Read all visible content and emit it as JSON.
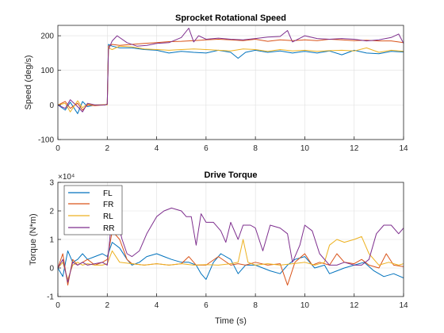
{
  "chart_data": [
    {
      "type": "line",
      "title": "Sprocket Rotational Speed",
      "xlabel": "",
      "ylabel": "Speed (deg/s)",
      "xlim": [
        0,
        14
      ],
      "ylim": [
        -100,
        230
      ],
      "xticks": [
        "0",
        "2",
        "4",
        "6",
        "8",
        "10",
        "12",
        "14"
      ],
      "yticks": [
        "-100",
        "0",
        "100",
        "200"
      ],
      "grid": true,
      "legend": "none",
      "colors": [
        "#0072BD",
        "#D95319",
        "#EDB120",
        "#7E2F8E"
      ],
      "series": [
        {
          "x": [
            0,
            0.3,
            0.5,
            0.8,
            1.0,
            1.2,
            1.5,
            1.9,
            2.0,
            2.05,
            2.2,
            2.5,
            3.0,
            3.5,
            4.0,
            4.5,
            5.0,
            5.5,
            6.0,
            6.5,
            7.0,
            7.3,
            7.6,
            8.0,
            8.5,
            9.0,
            9.5,
            10.0,
            10.5,
            11.0,
            11.5,
            12.0,
            12.5,
            13.0,
            13.5,
            14.0
          ],
          "values": [
            0,
            -15,
            8,
            -25,
            10,
            -5,
            0,
            0,
            2,
            175,
            170,
            165,
            165,
            160,
            158,
            150,
            155,
            152,
            150,
            158,
            152,
            135,
            152,
            158,
            152,
            156,
            150,
            155,
            150,
            156,
            145,
            158,
            150,
            148,
            155,
            153
          ]
        },
        {
          "x": [
            0,
            0.3,
            0.5,
            0.8,
            1.0,
            1.2,
            1.5,
            1.9,
            2.0,
            2.05,
            2.2,
            2.5,
            3.0,
            3.5,
            4.0,
            4.5,
            5.0,
            5.5,
            6.0,
            6.5,
            7.0,
            7.5,
            8.0,
            8.5,
            9.0,
            9.5,
            10.0,
            10.5,
            11.0,
            11.5,
            12.0,
            12.5,
            13.0,
            13.5,
            14.0
          ],
          "values": [
            0,
            10,
            -10,
            5,
            -15,
            0,
            -2,
            0,
            3,
            170,
            175,
            172,
            175,
            178,
            180,
            183,
            184,
            186,
            188,
            190,
            188,
            186,
            190,
            184,
            188,
            186,
            188,
            186,
            190,
            188,
            186,
            187,
            185,
            185,
            180
          ]
        },
        {
          "x": [
            0,
            0.3,
            0.5,
            0.8,
            1.0,
            1.2,
            1.5,
            1.9,
            2.0,
            2.05,
            2.2,
            2.5,
            3.0,
            3.5,
            4.0,
            4.5,
            5.0,
            5.5,
            6.0,
            6.5,
            7.0,
            7.5,
            8.0,
            8.5,
            9.0,
            9.5,
            10.0,
            10.5,
            11.0,
            11.5,
            12.0,
            12.5,
            13.0,
            13.5,
            14.0
          ],
          "values": [
            0,
            5,
            -20,
            12,
            -8,
            3,
            0,
            1,
            0,
            165,
            160,
            170,
            168,
            162,
            160,
            158,
            160,
            162,
            160,
            158,
            156,
            162,
            160,
            155,
            160,
            156,
            158,
            155,
            157,
            158,
            156,
            165,
            152,
            158,
            155
          ]
        },
        {
          "x": [
            0,
            0.3,
            0.5,
            0.8,
            1.0,
            1.2,
            1.5,
            1.9,
            2.0,
            2.05,
            2.2,
            2.4,
            2.8,
            3.2,
            3.6,
            4.0,
            4.5,
            5.0,
            5.3,
            5.5,
            5.7,
            6.0,
            6.5,
            7.0,
            7.5,
            8.0,
            8.5,
            9.0,
            9.3,
            9.5,
            10.0,
            10.5,
            11.0,
            11.5,
            12.0,
            12.5,
            13.0,
            13.5,
            13.8,
            14.0
          ],
          "values": [
            0,
            -10,
            15,
            -5,
            -20,
            5,
            0,
            0,
            2,
            160,
            185,
            200,
            180,
            170,
            172,
            178,
            180,
            195,
            222,
            182,
            200,
            190,
            193,
            190,
            188,
            192,
            196,
            198,
            215,
            182,
            200,
            192,
            190,
            192,
            190,
            185,
            188,
            195,
            205,
            178
          ]
        }
      ]
    },
    {
      "type": "line",
      "title": "Drive Torque",
      "xlabel": "Time (s)",
      "ylabel": "Torque (N*m)",
      "exponent_label": "×10⁴",
      "xlim": [
        0,
        14
      ],
      "ylim": [
        -1,
        3
      ],
      "xticks": [
        "0",
        "2",
        "4",
        "6",
        "8",
        "10",
        "12",
        "14"
      ],
      "yticks": [
        "-1",
        "0",
        "1",
        "2",
        "3"
      ],
      "grid": true,
      "legend": "top-left",
      "legend_entries": [
        "FL",
        "FR",
        "RL",
        "RR"
      ],
      "colors": [
        "#0072BD",
        "#D95319",
        "#EDB120",
        "#7E2F8E"
      ],
      "series": [
        {
          "name": "FL",
          "x": [
            0,
            0.2,
            0.4,
            0.6,
            0.8,
            1.0,
            1.2,
            1.5,
            1.8,
            2.0,
            2.2,
            2.5,
            2.8,
            3.0,
            3.3,
            3.6,
            4.0,
            4.3,
            4.6,
            5.0,
            5.3,
            5.6,
            5.8,
            6.0,
            6.3,
            6.6,
            7.0,
            7.3,
            7.6,
            8.0,
            8.3,
            8.6,
            9.0,
            9.3,
            9.6,
            10.0,
            10.4,
            10.8,
            11.0,
            11.3,
            11.6,
            12.0,
            12.4,
            12.8,
            13.2,
            13.6,
            14.0
          ],
          "values": [
            0,
            -0.3,
            0.6,
            0.2,
            0.3,
            0.5,
            0.3,
            0.4,
            0.5,
            0.4,
            0.9,
            0.7,
            0.3,
            0.1,
            0.2,
            0.4,
            0.5,
            0.4,
            0.3,
            0.2,
            0.2,
            0.1,
            -0.2,
            -0.4,
            0.2,
            0.5,
            0.3,
            -0.2,
            0.1,
            0.1,
            0.0,
            -0.1,
            -0.2,
            0.1,
            0.3,
            0.4,
            0.0,
            0.1,
            -0.2,
            -0.1,
            0.0,
            0.1,
            0.2,
            -0.1,
            -0.3,
            -0.2,
            -0.35
          ]
        },
        {
          "name": "FR",
          "x": [
            0,
            0.2,
            0.4,
            0.6,
            0.8,
            1.0,
            1.2,
            1.5,
            1.8,
            2.0,
            2.2,
            2.5,
            2.8,
            3.0,
            3.5,
            4.0,
            4.5,
            5.0,
            5.3,
            5.6,
            6.0,
            6.5,
            7.0,
            7.3,
            7.6,
            8.0,
            8.5,
            9.0,
            9.3,
            9.6,
            10.0,
            10.3,
            10.6,
            11.0,
            11.3,
            11.6,
            12.0,
            12.3,
            12.6,
            13.0,
            13.3,
            13.6,
            14.0
          ],
          "values": [
            0,
            0.5,
            -0.6,
            0.3,
            0.1,
            0.2,
            0.3,
            0.1,
            0.2,
            0.3,
            1.3,
            1.0,
            0.3,
            0.15,
            0.1,
            0.15,
            0.1,
            0.15,
            0.4,
            0.1,
            0.1,
            0.4,
            0.1,
            0.15,
            0.1,
            0.2,
            0.1,
            0.15,
            -0.6,
            0.2,
            0.5,
            0.1,
            0.2,
            0.1,
            0.5,
            0.2,
            0.15,
            0.3,
            0.1,
            0.0,
            0.5,
            0.1,
            0.05
          ]
        },
        {
          "name": "RL",
          "x": [
            0,
            0.2,
            0.4,
            0.6,
            0.8,
            1.0,
            1.2,
            1.5,
            1.8,
            2.0,
            2.2,
            2.5,
            3.0,
            3.5,
            4.0,
            4.5,
            5.0,
            5.5,
            6.0,
            6.5,
            7.0,
            7.3,
            7.5,
            7.7,
            8.0,
            8.5,
            9.0,
            9.5,
            10.0,
            10.4,
            10.8,
            11.0,
            11.3,
            11.6,
            12.0,
            12.3,
            12.6,
            13.0,
            13.4,
            13.8,
            14.0
          ],
          "values": [
            0,
            0.2,
            -0.4,
            0.1,
            0.2,
            0.1,
            0.15,
            0.1,
            0.1,
            0.15,
            0.6,
            0.2,
            0.15,
            0.1,
            0.15,
            0.1,
            0.15,
            0.1,
            0.12,
            0.1,
            0.15,
            0.2,
            1.0,
            0.2,
            0.1,
            0.15,
            0.1,
            0.15,
            0.2,
            0.1,
            0.2,
            0.8,
            1.0,
            0.9,
            1.0,
            1.1,
            0.5,
            0.1,
            0.2,
            0.1,
            0.15
          ]
        },
        {
          "name": "RR",
          "x": [
            0,
            0.2,
            0.4,
            0.6,
            0.8,
            1.0,
            1.2,
            1.5,
            1.8,
            2.0,
            2.2,
            2.4,
            2.6,
            2.8,
            3.0,
            3.3,
            3.6,
            4.0,
            4.3,
            4.6,
            5.0,
            5.2,
            5.4,
            5.6,
            5.8,
            6.0,
            6.3,
            6.6,
            6.8,
            7.0,
            7.3,
            7.5,
            7.8,
            8.0,
            8.3,
            8.6,
            9.0,
            9.3,
            9.5,
            9.8,
            10.0,
            10.3,
            10.6,
            11.0,
            11.3,
            11.6,
            12.0,
            12.3,
            12.6,
            12.9,
            13.2,
            13.5,
            13.8,
            14.0
          ],
          "values": [
            0,
            0.3,
            -0.5,
            0.2,
            0.1,
            0.2,
            0.1,
            0.15,
            0.2,
            0.1,
            1.9,
            1.7,
            1.0,
            0.5,
            0.4,
            0.6,
            1.2,
            1.8,
            2.0,
            2.1,
            2.0,
            1.8,
            1.8,
            0.8,
            1.9,
            1.6,
            1.6,
            1.3,
            0.9,
            1.6,
            1.0,
            1.5,
            1.5,
            1.4,
            0.6,
            1.5,
            1.4,
            1.2,
            0.2,
            0.8,
            1.5,
            1.3,
            0.5,
            0.1,
            0.1,
            0.2,
            0.1,
            0.1,
            0.3,
            1.2,
            1.5,
            1.5,
            1.2,
            1.4
          ]
        }
      ]
    }
  ]
}
